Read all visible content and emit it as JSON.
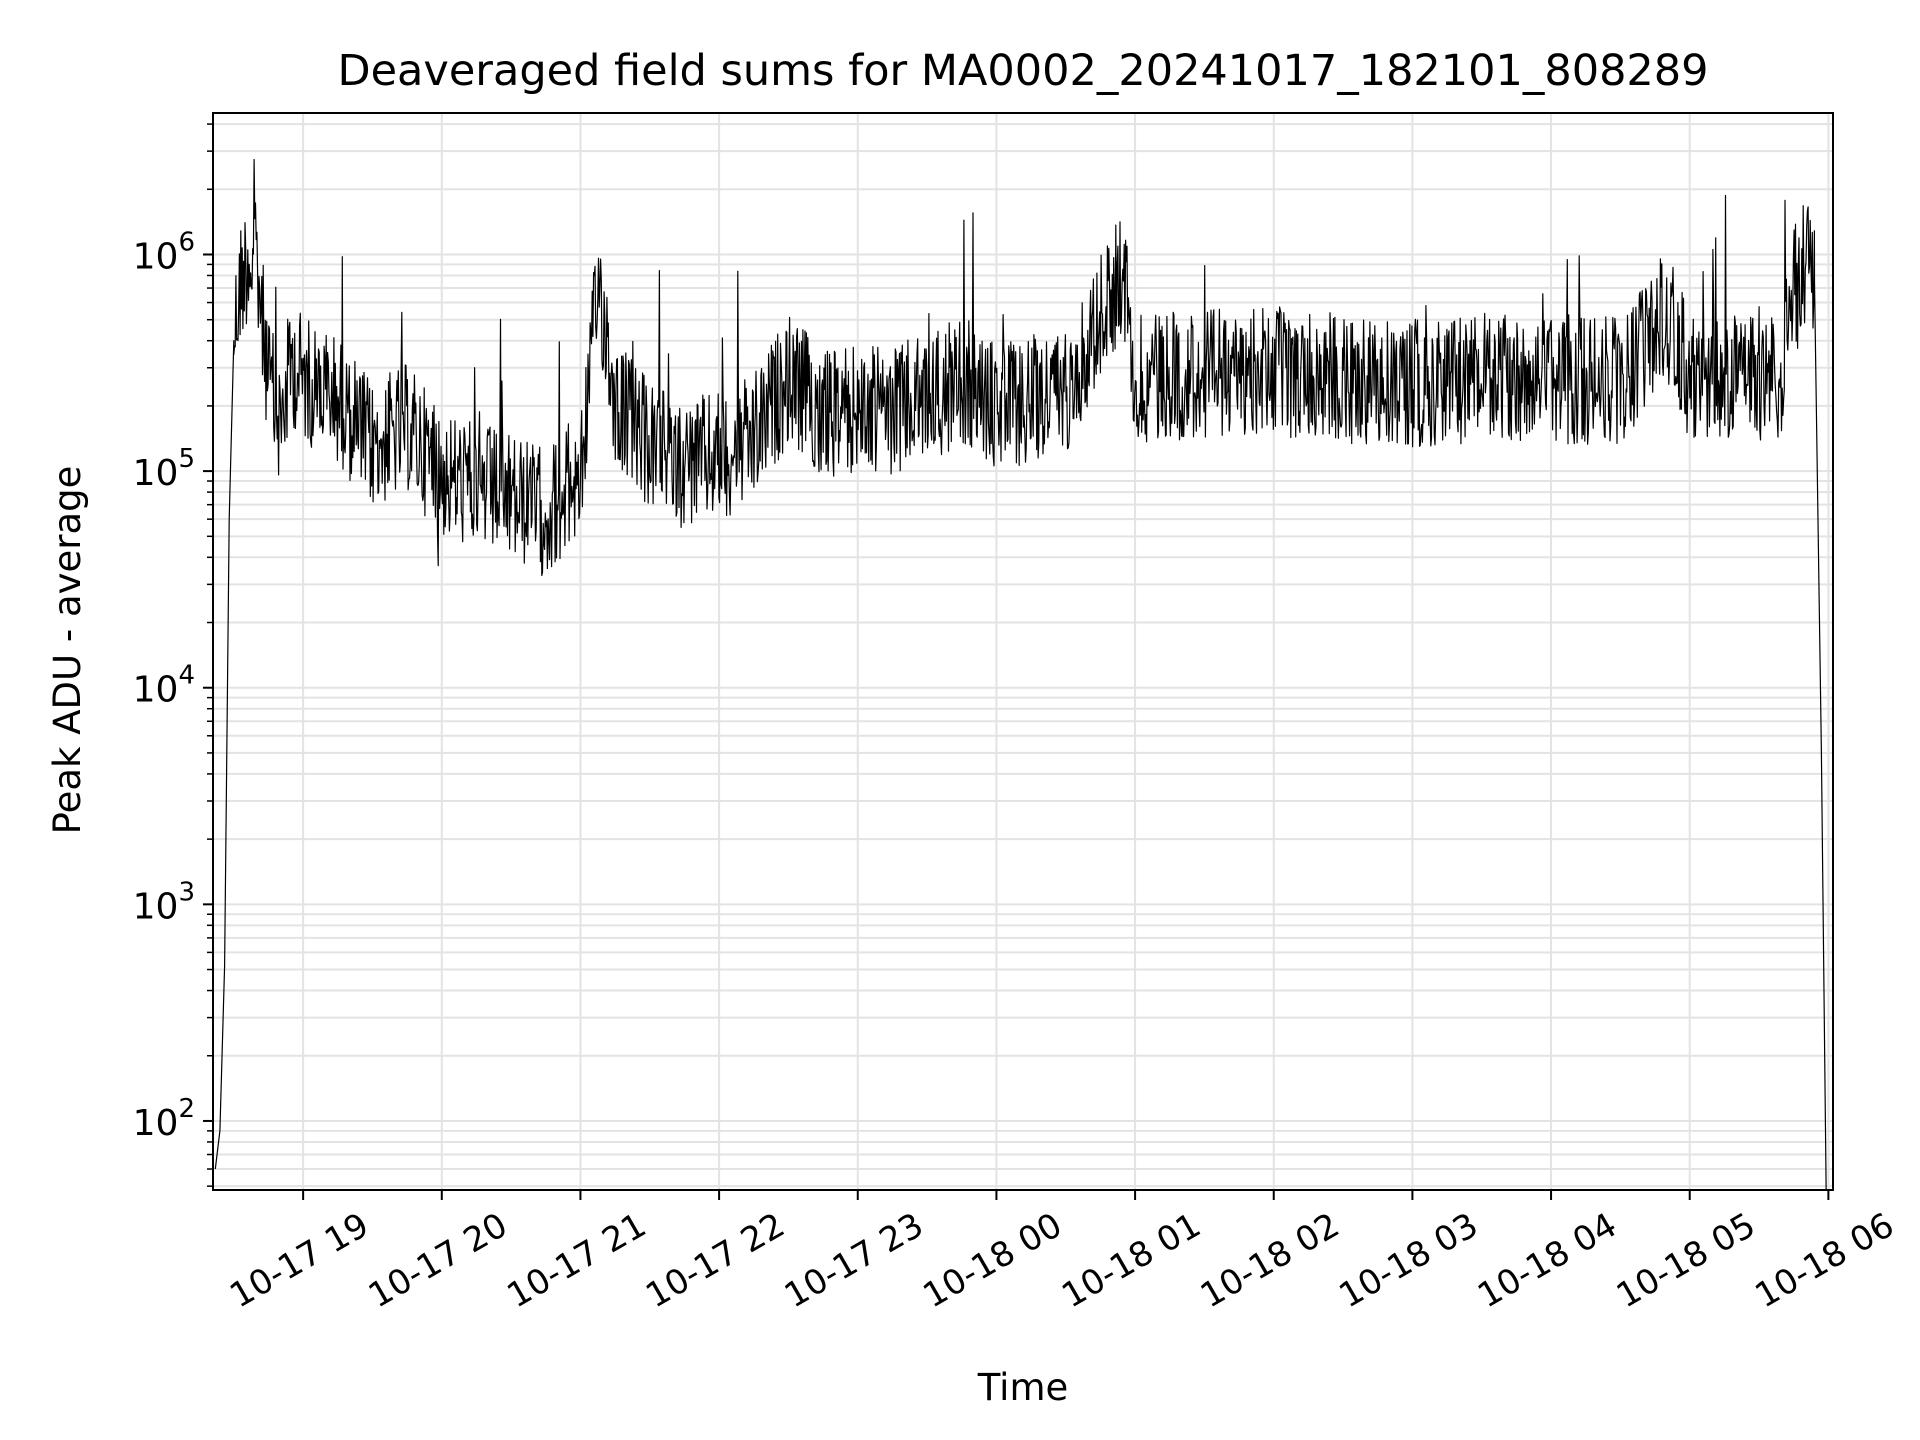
{
  "chart_data": {
    "type": "line",
    "title": "Deaveraged field sums for MA0002_20241017_182101_808289",
    "xlabel": "Time",
    "ylabel": "Peak ADU - average",
    "x_tick_labels": [
      "10-17 19",
      "10-17 20",
      "10-17 21",
      "10-17 22",
      "10-17 23",
      "10-18 00",
      "10-18 01",
      "10-18 02",
      "10-18 03",
      "10-18 04",
      "10-18 05",
      "10-18 06"
    ],
    "x_ticks": [
      "2024-10-17 19:00",
      "2024-10-17 20:00",
      "2024-10-17 21:00",
      "2024-10-17 22:00",
      "2024-10-17 23:00",
      "2024-10-18 00:00",
      "2024-10-18 01:00",
      "2024-10-18 02:00",
      "2024-10-18 03:00",
      "2024-10-18 04:00",
      "2024-10-18 05:00",
      "2024-10-18 06:00"
    ],
    "xlim": [
      "2024-10-17 18:21",
      "2024-10-18 06:02"
    ],
    "y_scale": "log",
    "y_tick_labels": [
      {
        "base": "10",
        "exp": "2"
      },
      {
        "base": "10",
        "exp": "3"
      },
      {
        "base": "10",
        "exp": "4"
      },
      {
        "base": "10",
        "exp": "5"
      },
      {
        "base": "10",
        "exp": "6"
      }
    ],
    "y_ticks": [
      100,
      1000,
      10000,
      100000,
      1000000
    ],
    "ylim": [
      48,
      4500000
    ],
    "grid": true,
    "line_color": "#000000",
    "grid_color": "#e3e3e3",
    "series": [
      {
        "x": [
          "2024-10-17 18:22",
          "2024-10-17 18:24",
          "2024-10-17 18:26",
          "2024-10-17 18:28",
          "2024-10-17 18:30",
          "2024-10-17 18:33",
          "2024-10-17 18:36",
          "2024-10-17 18:40",
          "2024-10-17 18:45",
          "2024-10-17 18:50",
          "2024-10-17 18:55",
          "2024-10-17 19:00",
          "2024-10-17 19:15",
          "2024-10-17 19:30",
          "2024-10-17 19:45",
          "2024-10-17 20:00",
          "2024-10-17 20:15",
          "2024-10-17 20:30",
          "2024-10-17 20:45",
          "2024-10-17 21:00",
          "2024-10-17 21:08",
          "2024-10-17 21:15",
          "2024-10-17 21:30",
          "2024-10-17 21:45",
          "2024-10-17 22:00",
          "2024-10-17 22:15",
          "2024-10-17 22:30",
          "2024-10-17 22:45",
          "2024-10-17 23:00",
          "2024-10-17 23:15",
          "2024-10-17 23:30",
          "2024-10-17 23:45",
          "2024-10-18 00:00",
          "2024-10-18 00:30",
          "2024-10-18 00:55",
          "2024-10-18 01:00",
          "2024-10-18 01:30",
          "2024-10-18 02:00",
          "2024-10-18 02:30",
          "2024-10-18 03:00",
          "2024-10-18 03:30",
          "2024-10-18 04:00",
          "2024-10-18 04:30",
          "2024-10-18 04:50",
          "2024-10-18 05:00",
          "2024-10-18 05:30",
          "2024-10-18 05:40",
          "2024-10-18 05:45",
          "2024-10-18 05:50",
          "2024-10-18 05:54",
          "2024-10-18 05:57",
          "2024-10-18 05:59"
        ],
        "y": [
          60,
          90,
          520,
          60000,
          400000,
          700000,
          900000,
          800000,
          250000,
          150000,
          300000,
          250000,
          200000,
          120000,
          150000,
          90000,
          80000,
          70000,
          60000,
          90000,
          700000,
          200000,
          120000,
          100000,
          110000,
          130000,
          250000,
          170000,
          180000,
          180000,
          200000,
          250000,
          180000,
          220000,
          800000,
          250000,
          260000,
          270000,
          250000,
          240000,
          250000,
          250000,
          240000,
          500000,
          250000,
          250000,
          250000,
          700000,
          900000,
          750000,
          5000,
          50
        ]
      }
    ]
  }
}
